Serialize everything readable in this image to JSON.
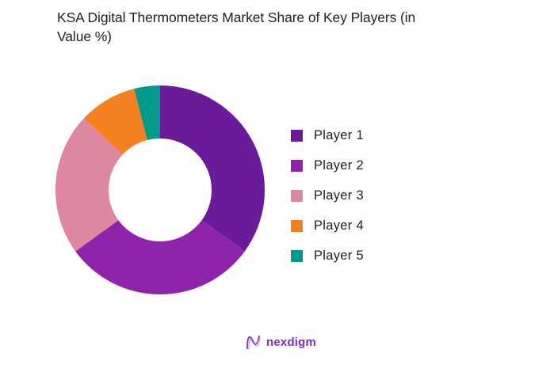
{
  "chart_data": {
    "type": "pie",
    "subtype": "donut",
    "title": "KSA Digital Thermometers  Market Share of Key Players (in Value %)",
    "categories": [
      "Player 1",
      "Player 2",
      "Player 3",
      "Player 4",
      "Player 5"
    ],
    "values": [
      35,
      30,
      22,
      9,
      4
    ],
    "colors": [
      "#6a1b9a",
      "#8e24aa",
      "#de87a0",
      "#f5801f",
      "#00998a"
    ],
    "start_angle": "12 o'clock",
    "direction": "clockwise",
    "legend_position": "right",
    "unit": "%"
  },
  "title_line1": "KSA Digital Thermometers  Market Share of Key Players (in",
  "title_line2": "Value %)",
  "legend": [
    {
      "label": "Player 1",
      "color": "#6a1b9a"
    },
    {
      "label": "Player 2",
      "color": "#8e24aa"
    },
    {
      "label": "Player 3",
      "color": "#de87a0"
    },
    {
      "label": "Player 4",
      "color": "#f5801f"
    },
    {
      "label": "Player 5",
      "color": "#00998a"
    }
  ],
  "logo": {
    "text": "nexdigm",
    "icon": "nexdigm-wave-icon"
  }
}
